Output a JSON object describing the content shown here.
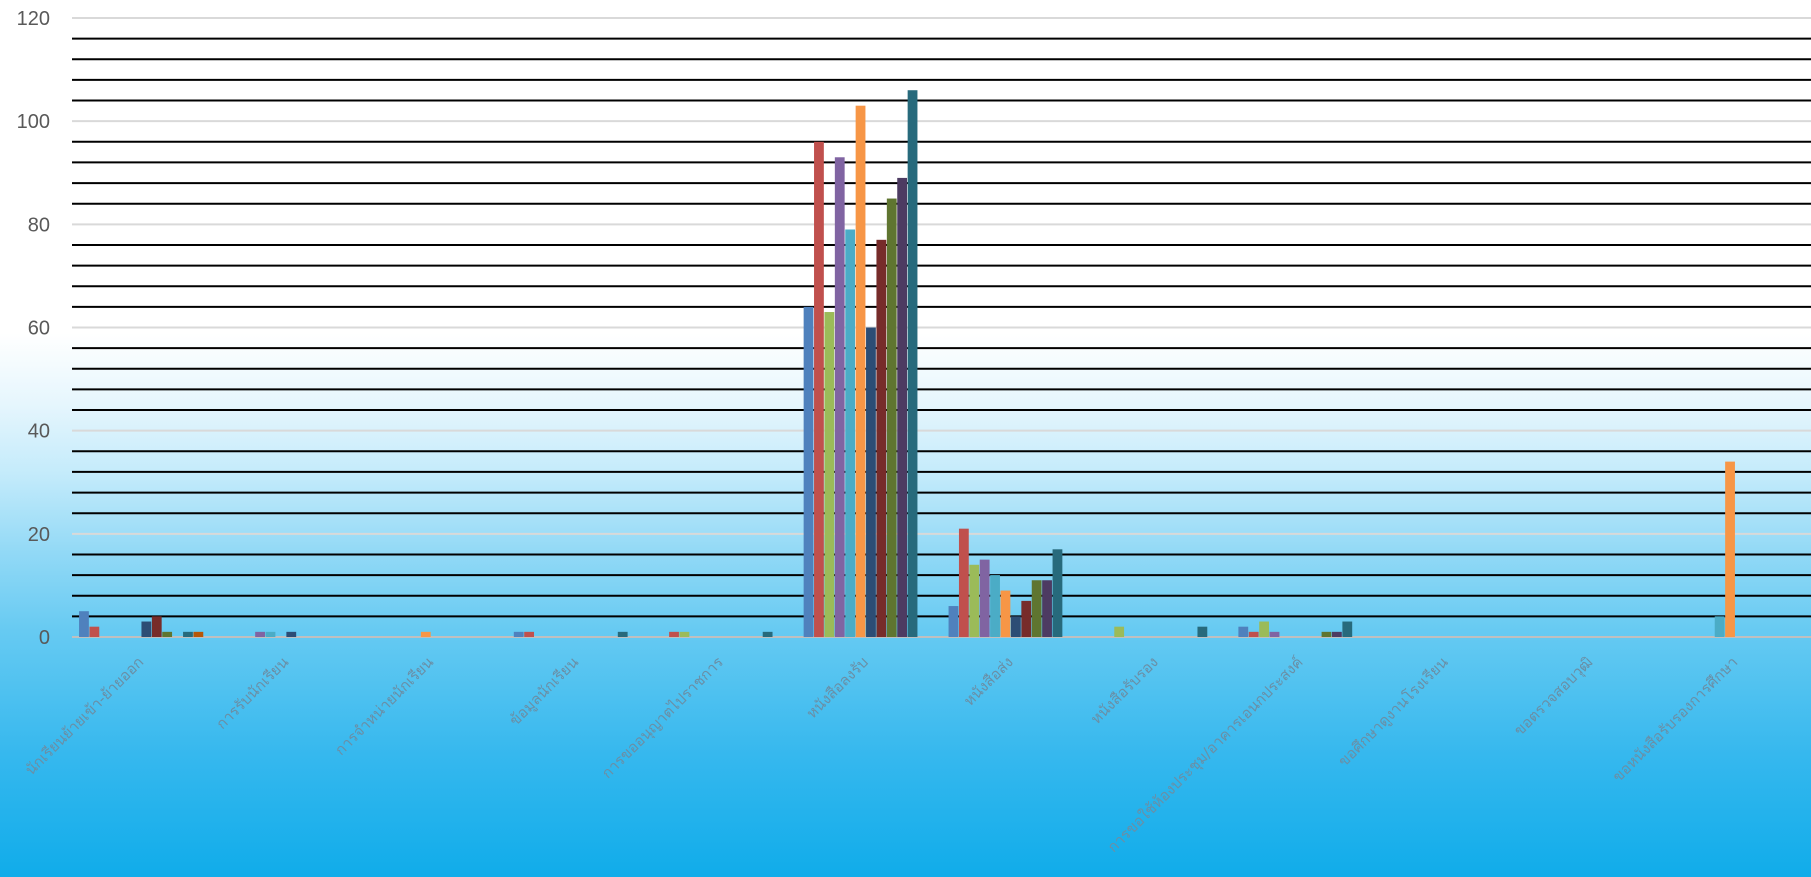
{
  "chart_data": {
    "type": "bar",
    "title": "",
    "xlabel": "",
    "ylabel": "",
    "ylim": [
      0,
      120
    ],
    "yticks": [
      0,
      20,
      40,
      60,
      80,
      100,
      120
    ],
    "grid": true,
    "legend": "none",
    "categories": [
      "นักเรียนย้ายเข้า-ย้ายออก",
      "การรับนักเรียน",
      "การจำหน่ายนักเรียน",
      "ข้อมูลนักเรียน",
      "การขออนุญาตไปราชการ",
      "หนังสือลงรับ",
      "หนังสือส่ง",
      "หนังสือรับรอง",
      "การขอใช้ห้องประชุม/อาคารเอนกประสงค์",
      "ขอศึกษาดูงานโรงเรียน",
      "ขอตรวจสอบวุฒิ",
      "ขอหนังสือรับรองการศึกษา"
    ],
    "series": [
      {
        "color": "#4f81bd",
        "values": [
          5,
          0,
          0,
          1,
          0,
          64,
          6,
          0,
          2,
          0,
          0,
          0
        ]
      },
      {
        "color": "#c0504d",
        "values": [
          2,
          0,
          0,
          1,
          1,
          96,
          21,
          0,
          1,
          0,
          0,
          0
        ]
      },
      {
        "color": "#9bbb59",
        "values": [
          0,
          0,
          0,
          0,
          1,
          63,
          14,
          2,
          3,
          0,
          0,
          0
        ]
      },
      {
        "color": "#8064a2",
        "values": [
          0,
          1,
          0,
          0,
          0,
          93,
          15,
          0,
          1,
          0,
          0,
          0
        ]
      },
      {
        "color": "#4bacc6",
        "values": [
          0,
          1,
          0,
          0,
          0,
          79,
          12,
          0,
          0,
          0,
          0,
          4
        ]
      },
      {
        "color": "#f79646",
        "values": [
          0,
          0,
          1,
          0,
          0,
          103,
          9,
          0,
          0,
          0,
          0,
          34
        ]
      },
      {
        "color": "#2c4d75",
        "values": [
          3,
          1,
          0,
          0,
          0,
          60,
          4,
          0,
          0,
          0,
          0,
          0
        ]
      },
      {
        "color": "#772c2a",
        "values": [
          4,
          0,
          0,
          0,
          0,
          77,
          7,
          0,
          0,
          0,
          0,
          0
        ]
      },
      {
        "color": "#5f7530",
        "values": [
          1,
          0,
          0,
          0,
          0,
          85,
          11,
          0,
          1,
          0,
          0,
          0
        ]
      },
      {
        "color": "#4d3b62",
        "values": [
          0,
          0,
          0,
          0,
          0,
          89,
          11,
          0,
          1,
          0,
          0,
          0
        ]
      },
      {
        "color": "#276a7c",
        "values": [
          1,
          0,
          0,
          1,
          1,
          106,
          17,
          2,
          3,
          0,
          0,
          0
        ]
      },
      {
        "color": "#b65708",
        "values": [
          1,
          0,
          0,
          0,
          0,
          0,
          0,
          0,
          0,
          0,
          0,
          0
        ]
      }
    ]
  }
}
